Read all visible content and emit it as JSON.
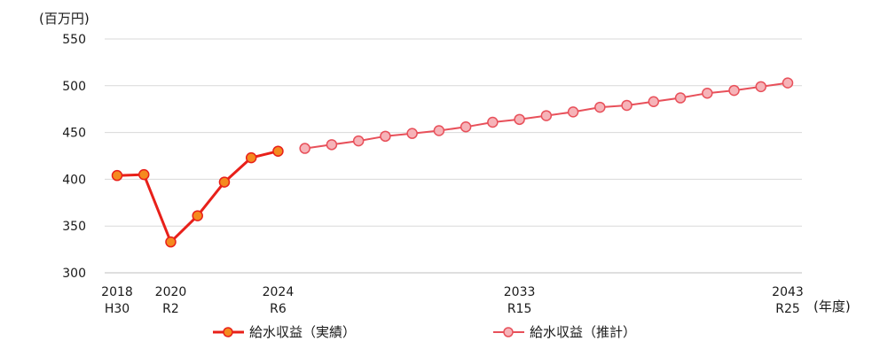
{
  "chart_data": {
    "type": "line",
    "y_unit_label": "(百万円)",
    "x_unit_label": "(年度)",
    "ylim": [
      300,
      550
    ],
    "yticks": [
      300,
      350,
      400,
      450,
      500,
      550
    ],
    "xlim": [
      2018,
      2043
    ],
    "x_ticks": [
      {
        "year": 2018,
        "line1": "2018",
        "line2": "H30"
      },
      {
        "year": 2020,
        "line1": "2020",
        "line2": "R2"
      },
      {
        "year": 2024,
        "line1": "2024",
        "line2": "R6"
      },
      {
        "year": 2033,
        "line1": "2033",
        "line2": "R15"
      },
      {
        "year": 2043,
        "line1": "2043",
        "line2": "R25"
      }
    ],
    "grid": "horizontal",
    "legend_position": "bottom",
    "series": [
      {
        "name": "給水収益（実績）",
        "color": "#e8201a",
        "marker_fill": "#f58a1f",
        "x": [
          2018,
          2019,
          2020,
          2021,
          2022,
          2023,
          2024
        ],
        "values": [
          404,
          405,
          333,
          361,
          397,
          423,
          430
        ]
      },
      {
        "name": "給水収益（推計）",
        "color": "#e8505a",
        "marker_fill": "#f6b3b8",
        "x": [
          2025,
          2026,
          2027,
          2028,
          2029,
          2030,
          2031,
          2032,
          2033,
          2034,
          2035,
          2036,
          2037,
          2038,
          2039,
          2040,
          2041,
          2042,
          2043
        ],
        "values": [
          433,
          437,
          441,
          446,
          449,
          452,
          456,
          461,
          464,
          468,
          472,
          477,
          479,
          483,
          487,
          492,
          495,
          499,
          503
        ]
      }
    ]
  }
}
